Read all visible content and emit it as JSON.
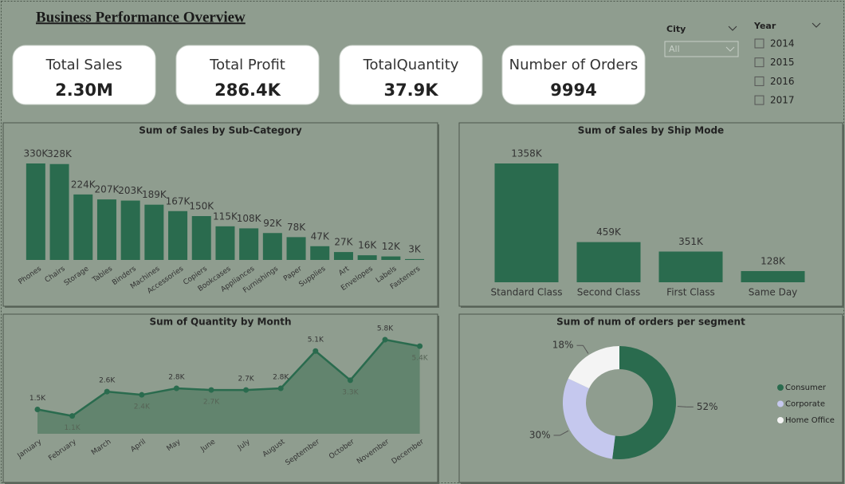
{
  "header": {
    "title": "Business Performance Overview"
  },
  "kpis": [
    {
      "label": "Total Sales",
      "value": "2.30M"
    },
    {
      "label": "Total Profit",
      "value": "286.4K"
    },
    {
      "label": "TotalQuantity",
      "value": "37.9K"
    },
    {
      "label": "Number of Orders",
      "value": "9994"
    }
  ],
  "filters": {
    "city": {
      "label": "City",
      "selected": "All"
    },
    "year": {
      "label": "Year",
      "options": [
        "2014",
        "2015",
        "2016",
        "2017"
      ]
    }
  },
  "chart_data": [
    {
      "type": "bar",
      "title": "Sum of Sales by Sub-Category",
      "color": "#2a6b4e",
      "categories": [
        "Phones",
        "Chairs",
        "Storage",
        "Tables",
        "Binders",
        "Machines",
        "Accessories",
        "Copiers",
        "Bookcases",
        "Appliances",
        "Furnishings",
        "Paper",
        "Supplies",
        "Art",
        "Envelopes",
        "Labels",
        "Fasteners"
      ],
      "values": [
        330,
        328,
        224,
        207,
        203,
        189,
        167,
        150,
        115,
        108,
        92,
        78,
        47,
        27,
        16,
        12,
        3
      ],
      "value_labels": [
        "330K",
        "328K",
        "224K",
        "207K",
        "203K",
        "189K",
        "167K",
        "150K",
        "115K",
        "108K",
        "92K",
        "78K",
        "47K",
        "27K",
        "16K",
        "12K",
        "3K"
      ]
    },
    {
      "type": "bar",
      "title": "Sum of Sales by Ship Mode",
      "color": "#2a6b4e",
      "categories": [
        "Standard Class",
        "Second Class",
        "First Class",
        "Same Day"
      ],
      "values": [
        1358,
        459,
        351,
        128
      ],
      "value_labels": [
        "1358K",
        "459K",
        "351K",
        "128K"
      ]
    },
    {
      "type": "area",
      "title": "Sum of Quantity by Month",
      "color": "#2a6b4e",
      "categories": [
        "January",
        "February",
        "March",
        "April",
        "May",
        "June",
        "July",
        "August",
        "September",
        "October",
        "November",
        "December"
      ],
      "values": [
        1.5,
        1.1,
        2.6,
        2.4,
        2.8,
        2.7,
        2.7,
        2.8,
        5.1,
        3.3,
        5.8,
        5.4
      ],
      "value_labels": [
        "1.5K",
        "1.1K",
        "2.6K",
        "2.4K",
        "2.8K",
        "2.7K",
        "2.7K",
        "2.8K",
        "5.1K",
        "3.3K",
        "5.8K",
        "5.4K"
      ]
    },
    {
      "type": "donut",
      "title": "Sum of num of orders per segment",
      "categories": [
        "Consumer",
        "Corporate",
        "Home Office"
      ],
      "values": [
        52,
        30,
        18
      ],
      "value_labels": [
        "52%",
        "30%",
        "18%"
      ],
      "colors": [
        "#2a6b4e",
        "#c5c8ee",
        "#f4f4f4"
      ]
    }
  ]
}
